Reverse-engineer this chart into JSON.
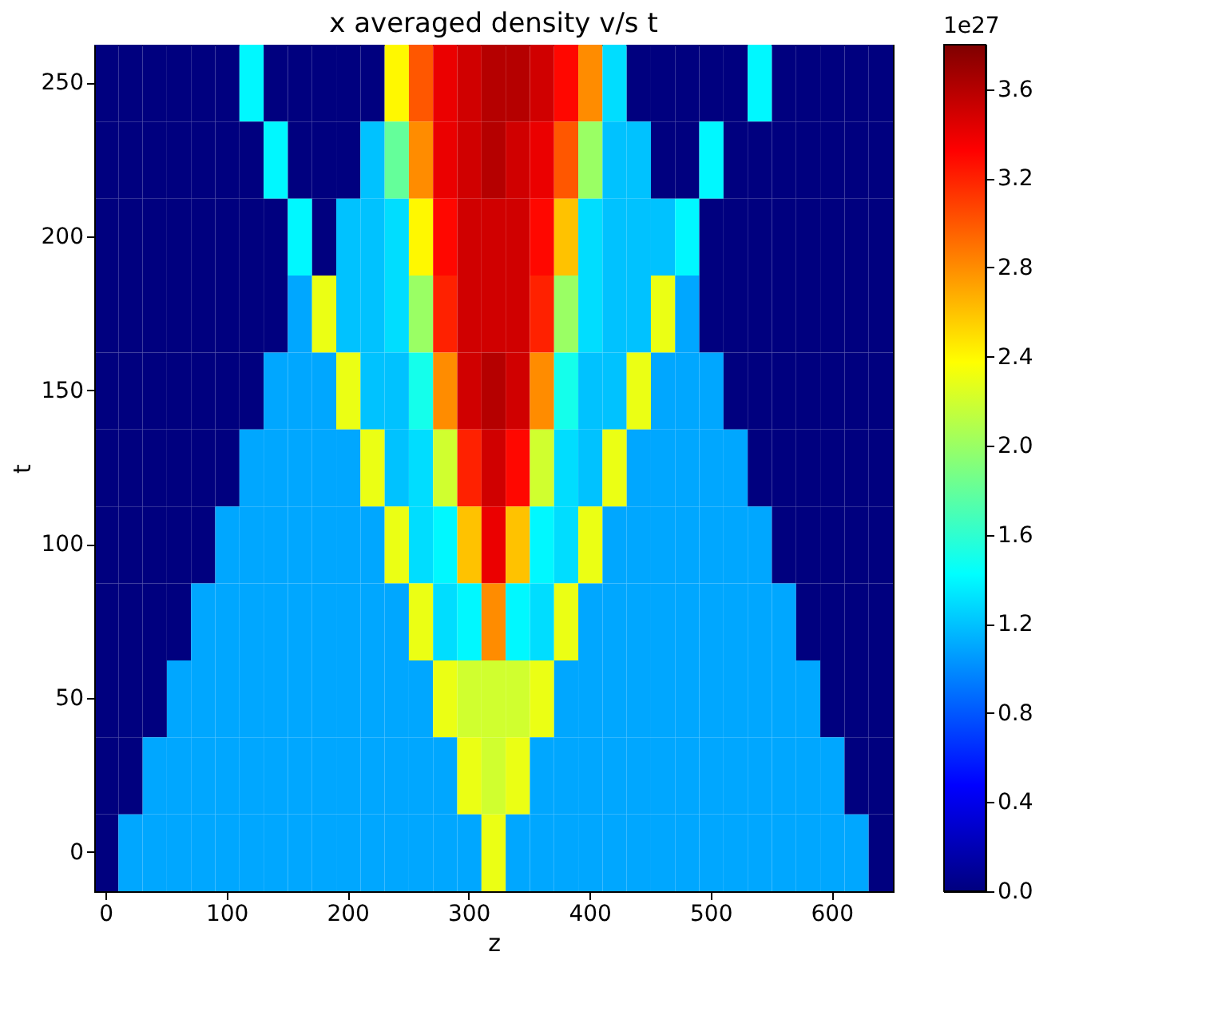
{
  "chart_data": {
    "type": "heatmap",
    "title": "x averaged density v/s t",
    "xlabel": "z",
    "ylabel": "t",
    "clabel": "1e27",
    "categories": [
      "0",
      null,
      null,
      null,
      null,
      "100",
      null,
      null,
      null,
      null,
      "200",
      null,
      null,
      null,
      null,
      "300",
      null,
      null,
      null,
      null,
      "400",
      null,
      null,
      null,
      null,
      "500",
      null,
      null,
      null,
      null,
      "600",
      null,
      null
    ],
    "y_categories": [
      "250",
      null,
      "200",
      null,
      "150",
      null,
      "100",
      null,
      "50",
      null,
      "0"
    ],
    "cells": [
      [
        0,
        0,
        0,
        0,
        0,
        0,
        1.4,
        0,
        0,
        0,
        0,
        0,
        2.4,
        3.0,
        3.4,
        3.5,
        3.6,
        3.6,
        3.5,
        3.3,
        2.8,
        1.3,
        0,
        0,
        0,
        0,
        0,
        1.4,
        0,
        0,
        0,
        0,
        0
      ],
      [
        0,
        0,
        0,
        0,
        0,
        0,
        0,
        1.4,
        0,
        0,
        0,
        1.2,
        1.8,
        2.8,
        3.4,
        3.5,
        3.6,
        3.5,
        3.4,
        3.0,
        2.0,
        1.2,
        1.2,
        0,
        0,
        1.4,
        0,
        0,
        0,
        0,
        0,
        0,
        0
      ],
      [
        0,
        0,
        0,
        0,
        0,
        0,
        0,
        0,
        1.4,
        0,
        1.2,
        1.2,
        1.3,
        2.4,
        3.3,
        3.5,
        3.5,
        3.5,
        3.3,
        2.6,
        1.3,
        1.2,
        1.2,
        1.2,
        1.4,
        0,
        0,
        0,
        0,
        0,
        0,
        0,
        0
      ],
      [
        0,
        0,
        0,
        0,
        0,
        0,
        0,
        0,
        1.1,
        2.3,
        1.2,
        1.2,
        1.3,
        2.0,
        3.2,
        3.5,
        3.5,
        3.5,
        3.2,
        2.0,
        1.3,
        1.2,
        1.2,
        2.3,
        1.1,
        0,
        0,
        0,
        0,
        0,
        0,
        0,
        0
      ],
      [
        0,
        0,
        0,
        0,
        0,
        0,
        0,
        1.1,
        1.1,
        1.1,
        2.3,
        1.2,
        1.2,
        1.5,
        2.8,
        3.5,
        3.6,
        3.5,
        2.8,
        1.5,
        1.2,
        1.2,
        2.3,
        1.1,
        1.1,
        1.1,
        0,
        0,
        0,
        0,
        0,
        0,
        0
      ],
      [
        0,
        0,
        0,
        0,
        0,
        0,
        1.1,
        1.1,
        1.1,
        1.1,
        1.1,
        2.3,
        1.2,
        1.3,
        2.2,
        3.2,
        3.5,
        3.3,
        2.2,
        1.3,
        1.2,
        2.3,
        1.1,
        1.1,
        1.1,
        1.1,
        1.1,
        0,
        0,
        0,
        0,
        0,
        0
      ],
      [
        0,
        0,
        0,
        0,
        0,
        1.1,
        1.1,
        1.1,
        1.1,
        1.1,
        1.1,
        1.1,
        2.3,
        1.3,
        1.4,
        2.6,
        3.4,
        2.6,
        1.4,
        1.3,
        2.3,
        1.1,
        1.1,
        1.1,
        1.1,
        1.1,
        1.1,
        1.1,
        0,
        0,
        0,
        0,
        0
      ],
      [
        0,
        0,
        0,
        0,
        1.1,
        1.1,
        1.1,
        1.1,
        1.1,
        1.1,
        1.1,
        1.1,
        1.1,
        2.3,
        1.3,
        1.4,
        2.8,
        1.4,
        1.3,
        2.3,
        1.1,
        1.1,
        1.1,
        1.1,
        1.1,
        1.1,
        1.1,
        1.1,
        1.1,
        0,
        0,
        0,
        0
      ],
      [
        0,
        0,
        0,
        1.1,
        1.1,
        1.1,
        1.1,
        1.1,
        1.1,
        1.1,
        1.1,
        1.1,
        1.1,
        1.1,
        2.3,
        2.2,
        2.2,
        2.2,
        2.3,
        1.1,
        1.1,
        1.1,
        1.1,
        1.1,
        1.1,
        1.1,
        1.1,
        1.1,
        1.1,
        1.1,
        0,
        0,
        0
      ],
      [
        0,
        0,
        1.1,
        1.1,
        1.1,
        1.1,
        1.1,
        1.1,
        1.1,
        1.1,
        1.1,
        1.1,
        1.1,
        1.1,
        1.1,
        2.3,
        2.2,
        2.3,
        1.1,
        1.1,
        1.1,
        1.1,
        1.1,
        1.1,
        1.1,
        1.1,
        1.1,
        1.1,
        1.1,
        1.1,
        1.1,
        0,
        0
      ],
      [
        0,
        1.1,
        1.1,
        1.1,
        1.1,
        1.1,
        1.1,
        1.1,
        1.1,
        1.1,
        1.1,
        1.1,
        1.1,
        1.1,
        1.1,
        1.1,
        2.3,
        1.1,
        1.1,
        1.1,
        1.1,
        1.1,
        1.1,
        1.1,
        1.1,
        1.1,
        1.1,
        1.1,
        1.1,
        1.1,
        1.1,
        1.1,
        0
      ]
    ],
    "colors": [
      "#00007f",
      "#0000ff",
      "#007fff",
      "#00ffff",
      "#7fff7f",
      "#ffff00",
      "#ff7f00",
      "#ff0000",
      "#7f0000"
    ],
    "clim": [
      0,
      3.8
    ],
    "cticks": [
      {
        "value": 0,
        "label": "0.0"
      },
      {
        "value": 0.4,
        "label": "0.4"
      },
      {
        "value": 0.8,
        "label": "0.8"
      },
      {
        "value": 1.2,
        "label": "1.2"
      },
      {
        "value": 1.6,
        "label": "1.6"
      },
      {
        "value": 2.0,
        "label": "2.0"
      },
      {
        "value": 2.4,
        "label": "2.4"
      },
      {
        "value": 2.8,
        "label": "2.8"
      },
      {
        "value": 3.2,
        "label": "3.2"
      },
      {
        "value": 3.6,
        "label": "3.6"
      }
    ],
    "grid": false
  }
}
